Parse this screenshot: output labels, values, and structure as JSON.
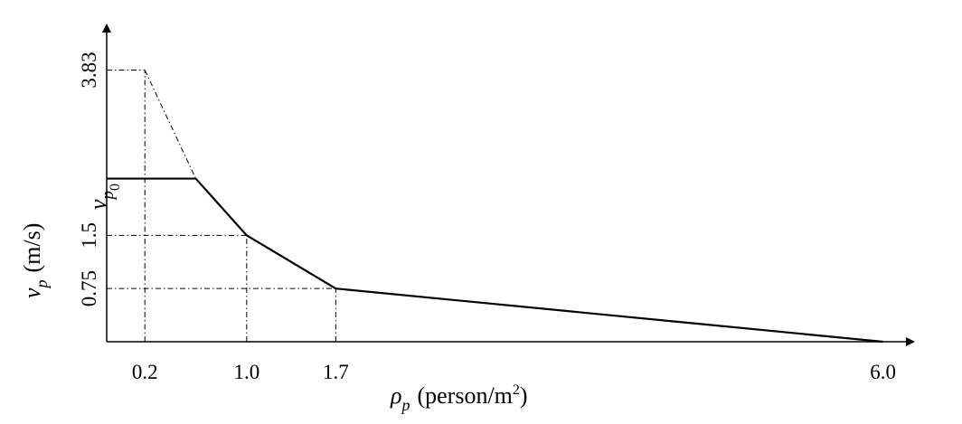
{
  "chart_data": {
    "type": "line",
    "xlabel": {
      "symbol": "ρ",
      "subscript": "p",
      "unit": "(person/m",
      "unit_sup": "2",
      "unit_close": ")"
    },
    "ylabel": {
      "symbol": "v",
      "subscript": "p",
      "unit": "(m/s)"
    },
    "x_tick_labels": [
      "0.2",
      "1.0",
      "1.7",
      "6.0"
    ],
    "x_ticks": [
      0.2,
      1.0,
      1.7,
      6.0
    ],
    "y_tick_labels": [
      "0.75",
      "1.5",
      "3.83"
    ],
    "y_ticks": [
      0.75,
      1.5,
      3.83
    ],
    "y_symbol_tick": {
      "symbol": "v",
      "subscript": "p",
      "subsub": "0",
      "value": 2.3
    },
    "xlim": [
      -0.1,
      6.5
    ],
    "ylim": [
      0,
      4.5
    ],
    "series": [
      {
        "x": [
          -0.1,
          0.6,
          1.0,
          1.7,
          6.0
        ],
        "y": [
          2.3,
          2.3,
          1.5,
          0.75,
          0.0
        ]
      }
    ],
    "dashed_extension": {
      "x": [
        0.2,
        0.6
      ],
      "y": [
        3.83,
        2.3
      ]
    },
    "guides": [
      {
        "x": 0.2,
        "y": 3.83
      },
      {
        "x": 1.0,
        "y": 1.5
      },
      {
        "x": 1.7,
        "y": 0.75
      }
    ],
    "grid": false,
    "legend": "none"
  }
}
